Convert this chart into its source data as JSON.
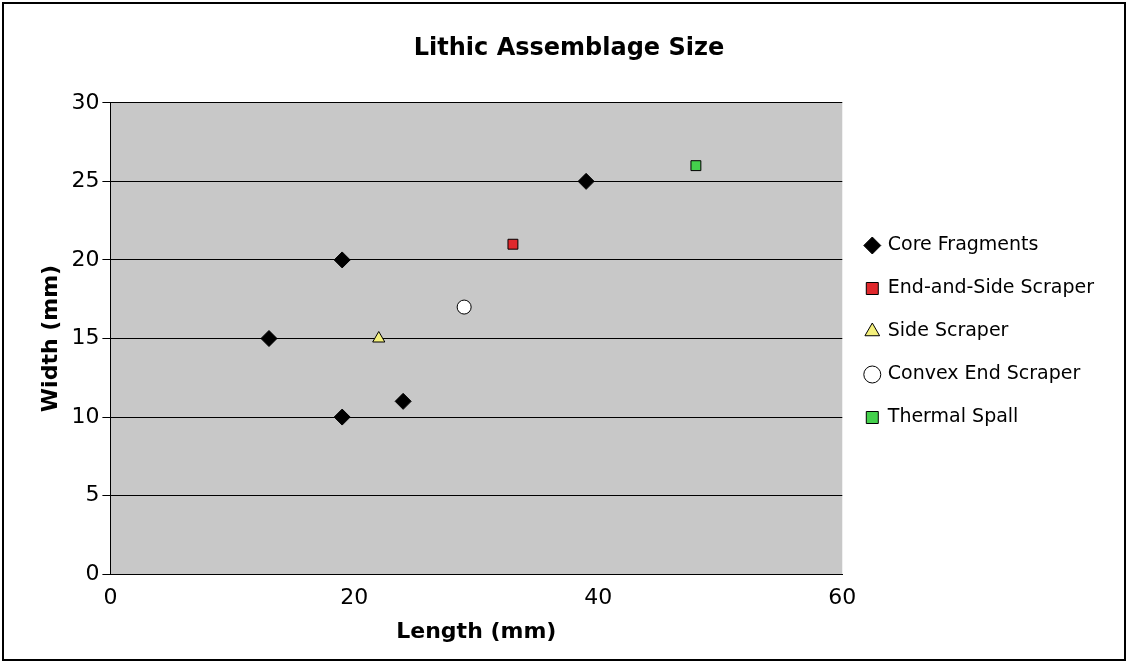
{
  "chart_data": {
    "type": "scatter",
    "title": "Lithic Assemblage Size",
    "xlabel": "Length (mm)",
    "ylabel": "Width (mm)",
    "xlim": [
      0,
      60
    ],
    "xticks": [
      0,
      20,
      40,
      60
    ],
    "ylim": [
      0,
      30
    ],
    "yticks": [
      0,
      5,
      10,
      15,
      20,
      25,
      30
    ],
    "grid": "y",
    "legend": "right",
    "series": [
      {
        "name": "Core Fragments",
        "color": "#000000",
        "marker": "diamond",
        "x": [
          19,
          13,
          19,
          24,
          39
        ],
        "values": [
          20,
          15,
          10,
          11,
          25
        ]
      },
      {
        "name": "End-and-Side Scraper",
        "color": "#e0282c",
        "marker": "square",
        "x": [
          33
        ],
        "values": [
          21
        ]
      },
      {
        "name": "Side Scraper",
        "color": "#f4f07c",
        "marker": "triangle",
        "x": [
          22
        ],
        "values": [
          15
        ]
      },
      {
        "name": "Convex End Scraper",
        "color": "#ffffff",
        "marker": "circle",
        "x": [
          29
        ],
        "values": [
          17
        ]
      },
      {
        "name": "Thermal Spall",
        "color": "#44d04c",
        "marker": "square",
        "x": [
          48
        ],
        "values": [
          26
        ]
      }
    ]
  }
}
